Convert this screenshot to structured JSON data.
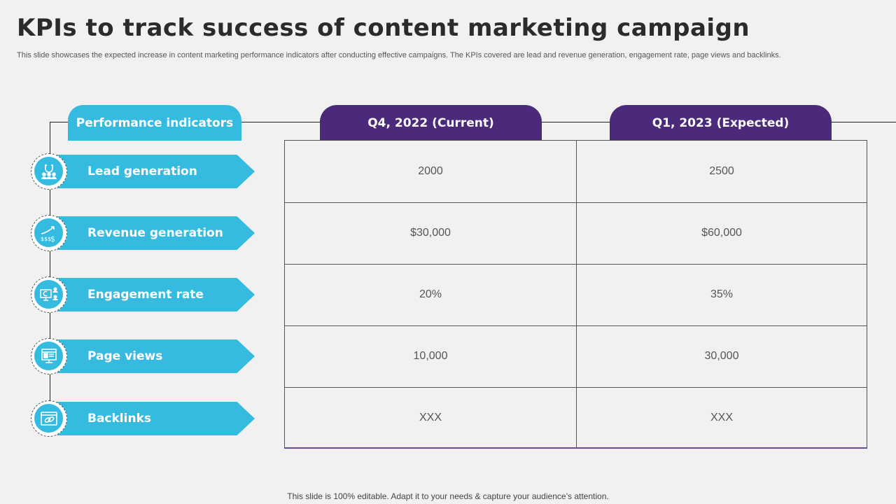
{
  "title": "KPIs to track success of content marketing campaign",
  "subtitle": "This slide showcases the expected increase in content marketing performance indicators after conducting effective campaigns. The KPIs covered are lead and revenue generation, engagement rate, page views and backlinks.",
  "table": {
    "header_indicators": "Performance indicators",
    "header_current": "Q4, 2022 (Current)",
    "header_expected": "Q1, 2023 (Expected)",
    "rows": [
      {
        "label": "Lead generation",
        "icon": "magnet-people-icon",
        "current": "2000",
        "expected": "2500"
      },
      {
        "label": "Revenue generation",
        "icon": "revenue-growth-icon",
        "current": "$30,000",
        "expected": "$60,000"
      },
      {
        "label": "Engagement rate",
        "icon": "engagement-screen-icon",
        "current": "20%",
        "expected": "35%"
      },
      {
        "label": "Page views",
        "icon": "monitor-page-icon",
        "current": "10,000",
        "expected": "30,000"
      },
      {
        "label": "Backlinks",
        "icon": "link-browser-icon",
        "current": "XXX",
        "expected": "XXX"
      }
    ]
  },
  "colors": {
    "accent_blue": "#36bbe0",
    "accent_purple": "#4b2a7b",
    "background": "#f1f1f1"
  },
  "footer": "This slide is 100% editable. Adapt it to your needs & capture your audience’s attention."
}
